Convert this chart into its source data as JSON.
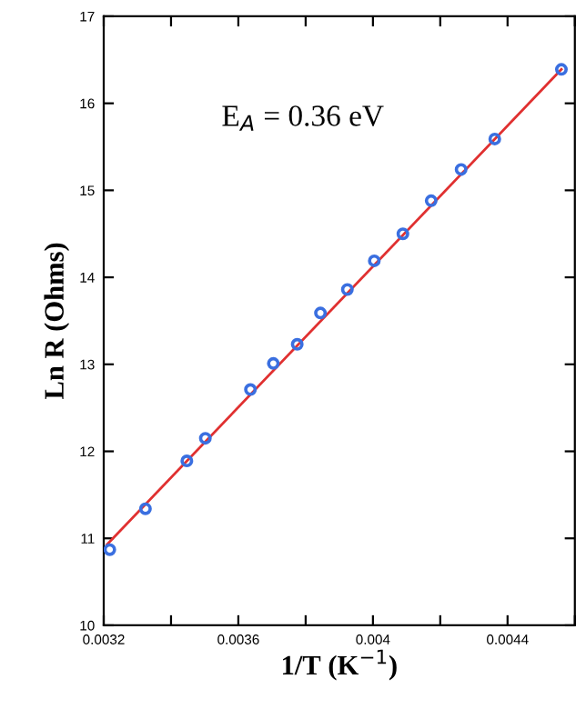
{
  "chart_data": {
    "type": "scatter",
    "xlabel": "1/T (K$^{−1}$)",
    "ylabel": "Ln R (Ohms)",
    "annotations": [
      "E$_{A}$ = 0.36 eV"
    ],
    "x": [
      0.003218,
      0.003324,
      0.003447,
      0.003502,
      0.003636,
      0.003704,
      0.003775,
      0.003844,
      0.003924,
      0.004004,
      0.004089,
      0.004173,
      0.004262,
      0.004362,
      0.00456
    ],
    "series": [
      {
        "color": "#3a6fe0",
        "marker": "circle",
        "values": [
          10.87,
          11.34,
          11.89,
          12.15,
          12.71,
          13.01,
          13.23,
          13.59,
          13.86,
          14.19,
          14.5,
          14.88,
          15.24,
          15.59,
          16.39
        ]
      },
      {
        "type": "line",
        "color": "#e03030",
        "x": [
          0.00321,
          0.00456
        ],
        "values": [
          10.93,
          16.39
        ]
      }
    ],
    "xlim": [
      0.0032,
      0.0046
    ],
    "ylim": [
      10,
      17
    ],
    "xticks": [
      0.0032,
      {
        "value": 0.0034,
        "label": null
      },
      0.0036,
      {
        "value": 0.0038,
        "label": null
      },
      0.004,
      {
        "value": 0.0042,
        "label": null
      },
      0.0044,
      {
        "value": 0.0046,
        "label": null
      }
    ],
    "yticks": [
      10,
      11,
      12,
      13,
      14,
      15,
      16,
      17
    ],
    "grid": false,
    "legend": false
  }
}
